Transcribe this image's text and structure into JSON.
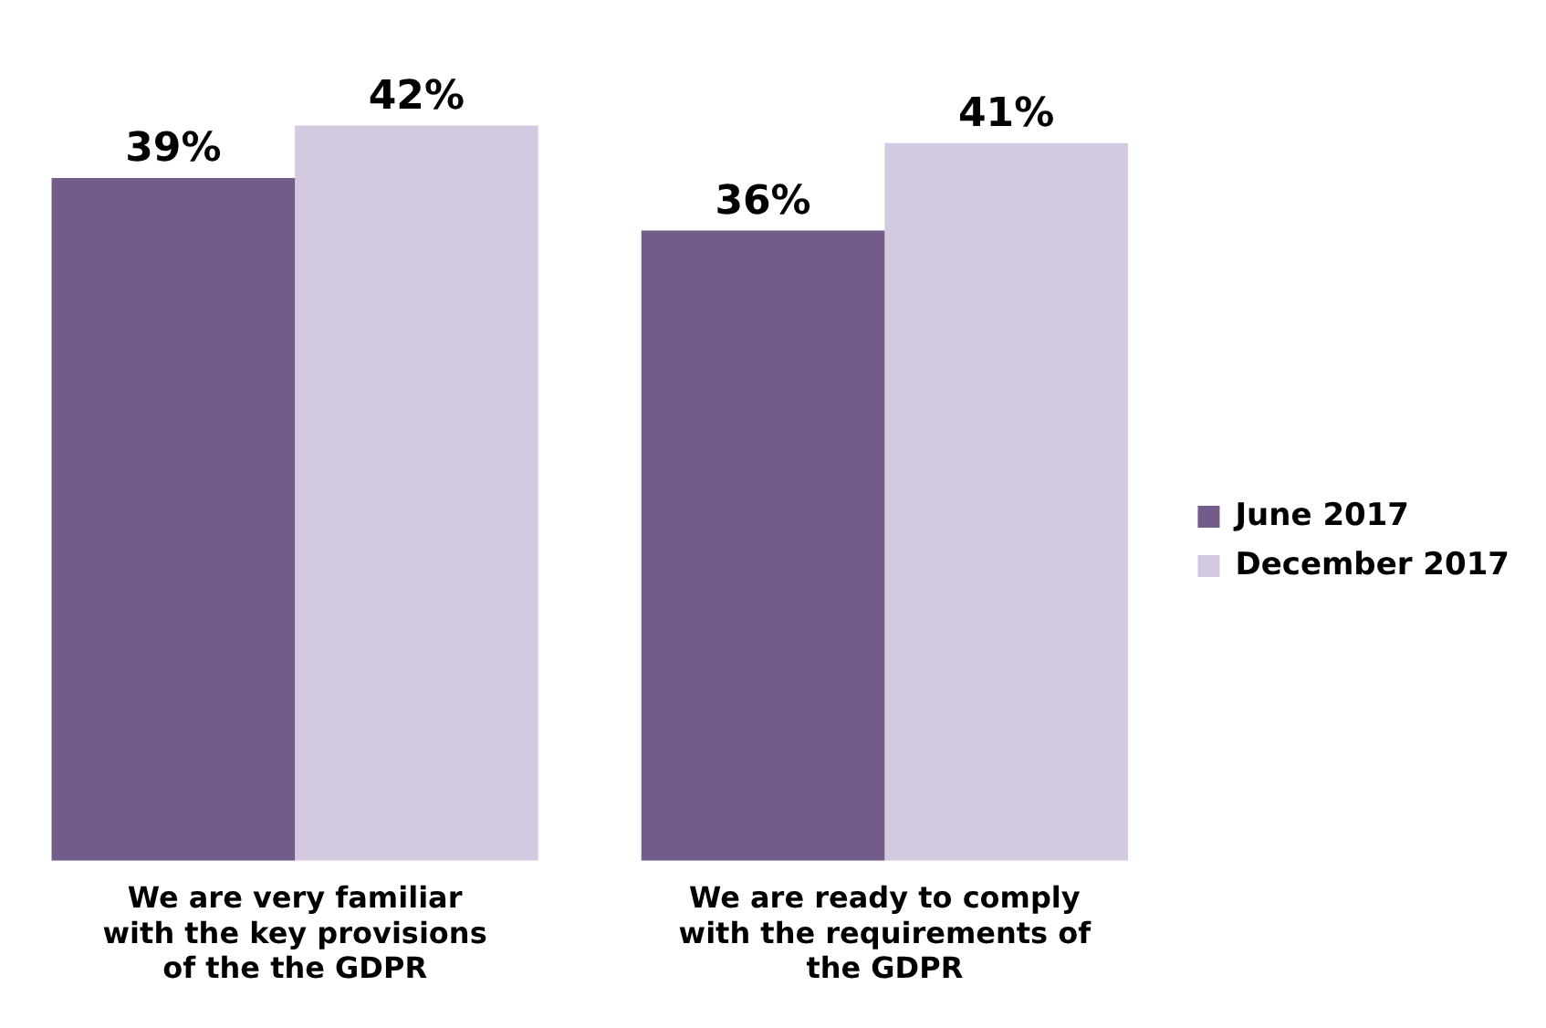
{
  "chart_data": {
    "type": "bar",
    "categories": [
      "We are very familiar with the key provisions of the the GDPR",
      "We are ready to comply with the requirements of the GDPR"
    ],
    "series": [
      {
        "name": "June 2017",
        "color": "#735b8a",
        "values": [
          39,
          36
        ],
        "value_labels": [
          "39%",
          "36%"
        ]
      },
      {
        "name": "December 2017",
        "color": "#d3c9e0",
        "values": [
          42,
          41
        ],
        "value_labels": [
          "42%",
          "41%"
        ]
      }
    ],
    "legend": "right",
    "grid": false
  }
}
